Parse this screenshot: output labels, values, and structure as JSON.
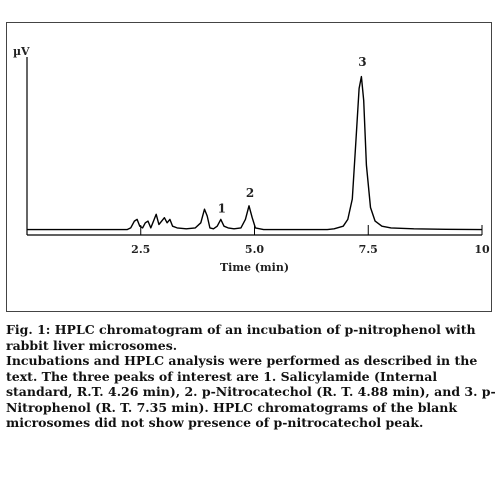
{
  "chart_data": {
    "type": "line",
    "title": "",
    "ylabel": "µV",
    "xlabel": "Time (min)",
    "xlim": [
      0,
      10
    ],
    "ylim": [
      0,
      100
    ],
    "x_ticks": [
      2.5,
      5.0,
      7.5,
      10
    ],
    "x_tick_labels": [
      "2.5",
      "5.0",
      "7.5",
      "10"
    ],
    "grid": false,
    "baseline": 2,
    "series": [
      {
        "points": [
          [
            0.0,
            2
          ],
          [
            2.2,
            2
          ],
          [
            2.28,
            3
          ],
          [
            2.36,
            7
          ],
          [
            2.42,
            8
          ],
          [
            2.48,
            4
          ],
          [
            2.54,
            3
          ],
          [
            2.6,
            6
          ],
          [
            2.66,
            7
          ],
          [
            2.72,
            3
          ],
          [
            2.78,
            7
          ],
          [
            2.84,
            11
          ],
          [
            2.9,
            5
          ],
          [
            2.96,
            7
          ],
          [
            3.02,
            9
          ],
          [
            3.08,
            6
          ],
          [
            3.14,
            8
          ],
          [
            3.2,
            4
          ],
          [
            3.3,
            3
          ],
          [
            3.5,
            2.5
          ],
          [
            3.7,
            3
          ],
          [
            3.82,
            6
          ],
          [
            3.9,
            14
          ],
          [
            3.96,
            10
          ],
          [
            4.02,
            3
          ],
          [
            4.1,
            2.5
          ],
          [
            4.18,
            4
          ],
          [
            4.26,
            8
          ],
          [
            4.33,
            4
          ],
          [
            4.42,
            3
          ],
          [
            4.55,
            2.5
          ],
          [
            4.7,
            3
          ],
          [
            4.8,
            8
          ],
          [
            4.88,
            16
          ],
          [
            4.95,
            9
          ],
          [
            5.02,
            3
          ],
          [
            5.2,
            2
          ],
          [
            6.6,
            2
          ],
          [
            6.75,
            2.5
          ],
          [
            6.95,
            4
          ],
          [
            7.05,
            8
          ],
          [
            7.15,
            20
          ],
          [
            7.23,
            55
          ],
          [
            7.3,
            85
          ],
          [
            7.35,
            92
          ],
          [
            7.4,
            78
          ],
          [
            7.46,
            40
          ],
          [
            7.55,
            15
          ],
          [
            7.65,
            7
          ],
          [
            7.8,
            4
          ],
          [
            8.0,
            3
          ],
          [
            8.5,
            2.5
          ],
          [
            9.2,
            2.2
          ],
          [
            10.0,
            2
          ]
        ]
      }
    ],
    "annotations": [
      {
        "text": "1",
        "x": 4.26,
        "y": 11
      },
      {
        "text": "2",
        "x": 4.88,
        "y": 20
      },
      {
        "text": "3",
        "x": 7.35,
        "y": 97
      }
    ]
  },
  "caption": {
    "figure_title": "Fig. 1: HPLC chromatogram of an incubation of p-nitrophenol with rabbit liver microsomes.",
    "body": "Incubations and HPLC analysis were performed as described in the text. The three peaks of interest are 1. Salicylamide (Internal standard, R.T. 4.26 min), 2. p-Nitrocatechol (R. T. 4.88 min), and 3. p-Nitrophenol (R. T. 7.35 min). HPLC chromatograms of the blank microsomes did not show presence of p-nitrocatechol peak."
  }
}
